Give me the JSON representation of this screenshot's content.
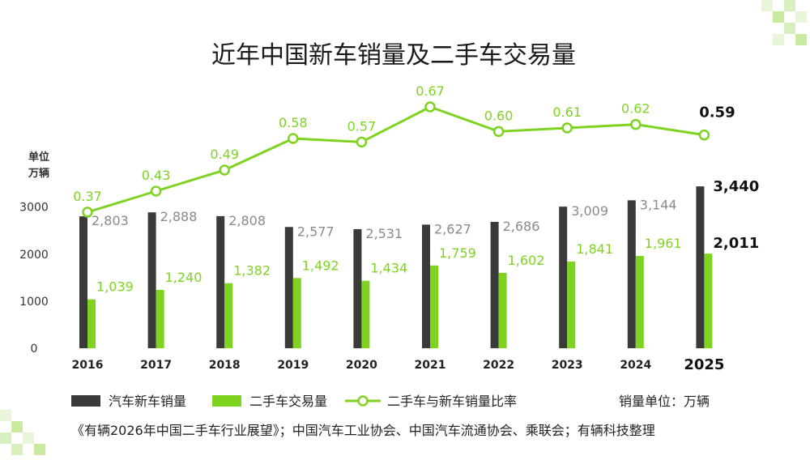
{
  "chart_data": {
    "type": "bar",
    "title": "近年中国新车销量及二手车交易量",
    "ylabel_lines": [
      "单位",
      "万辆"
    ],
    "yticks": [
      0,
      1000,
      2000,
      3000
    ],
    "ylim": [
      0,
      3800
    ],
    "categories": [
      "2016",
      "2017",
      "2018",
      "2019",
      "2020",
      "2021",
      "2022",
      "2023",
      "2024",
      "2025"
    ],
    "highlight_index": 9,
    "series": [
      {
        "name": "汽车新车销量",
        "type": "bar",
        "color": "#3a3a3a",
        "values": [
          2803,
          2888,
          2808,
          2577,
          2531,
          2627,
          2686,
          3009,
          3144,
          3440
        ],
        "labels": [
          "2,803",
          "2,888",
          "2,808",
          "2,577",
          "2,531",
          "2,627",
          "2,686",
          "3,009",
          "3,144",
          "3,440"
        ]
      },
      {
        "name": "二手车交易量",
        "type": "bar",
        "color": "#7ed321",
        "values": [
          1039,
          1240,
          1382,
          1492,
          1434,
          1759,
          1602,
          1841,
          1961,
          2011
        ],
        "labels": [
          "1,039",
          "1,240",
          "1,382",
          "1,492",
          "1,434",
          "1,759",
          "1,602",
          "1,841",
          "1,961",
          "2,011"
        ]
      },
      {
        "name": "二手车与新车销量比率",
        "type": "line",
        "color": "#7ed321",
        "values": [
          0.37,
          0.43,
          0.49,
          0.58,
          0.57,
          0.67,
          0.6,
          0.61,
          0.62,
          0.59
        ],
        "labels": [
          "0.37",
          "0.43",
          "0.49",
          "0.58",
          "0.57",
          "0.67",
          "0.60",
          "0.61",
          "0.62",
          "0.59"
        ]
      }
    ],
    "ratio_range": [
      0.2,
      0.8
    ],
    "legend_note": "销量单位：万辆",
    "legend_position": "bottom",
    "source": "《有辆2026年中国二手车行业展望》；中国汽车工业协会、中国汽车流通协会、乘联会；有辆科技整理"
  }
}
